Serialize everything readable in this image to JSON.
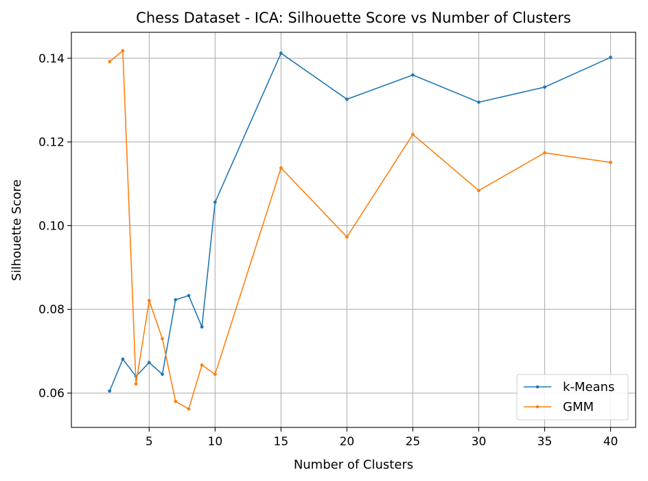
{
  "chart_data": {
    "type": "line",
    "title": "Chess Dataset - ICA: Silhouette Score vs Number of Clusters",
    "xlabel": "Number of Clusters",
    "ylabel": "Silhouette Score",
    "xlim": [
      -0.9,
      41.9
    ],
    "ylim": [
      0.0518,
      0.1462
    ],
    "xticks": [
      5,
      10,
      15,
      20,
      25,
      30,
      35,
      40
    ],
    "yticks": [
      0.06,
      0.08,
      0.1,
      0.12,
      0.14
    ],
    "ytick_labels": [
      "0.06",
      "0.08",
      "0.10",
      "0.12",
      "0.14"
    ],
    "grid": true,
    "legend_position": "lower right",
    "x": [
      2,
      3,
      4,
      5,
      6,
      7,
      8,
      9,
      10,
      15,
      20,
      25,
      30,
      35,
      40
    ],
    "series": [
      {
        "name": "k-Means",
        "color": "#1f77b4",
        "values": [
          0.0605,
          0.0681,
          0.064,
          0.0673,
          0.0645,
          0.0823,
          0.0833,
          0.0758,
          0.1056,
          0.1412,
          0.1302,
          0.136,
          0.1295,
          0.1331,
          0.1402
        ]
      },
      {
        "name": "GMM",
        "color": "#ff7f0e",
        "values": [
          0.1392,
          0.1418,
          0.0622,
          0.0821,
          0.073,
          0.058,
          0.0562,
          0.0667,
          0.0645,
          0.1138,
          0.0973,
          0.1218,
          0.1084,
          0.1174,
          0.1151
        ]
      }
    ]
  }
}
